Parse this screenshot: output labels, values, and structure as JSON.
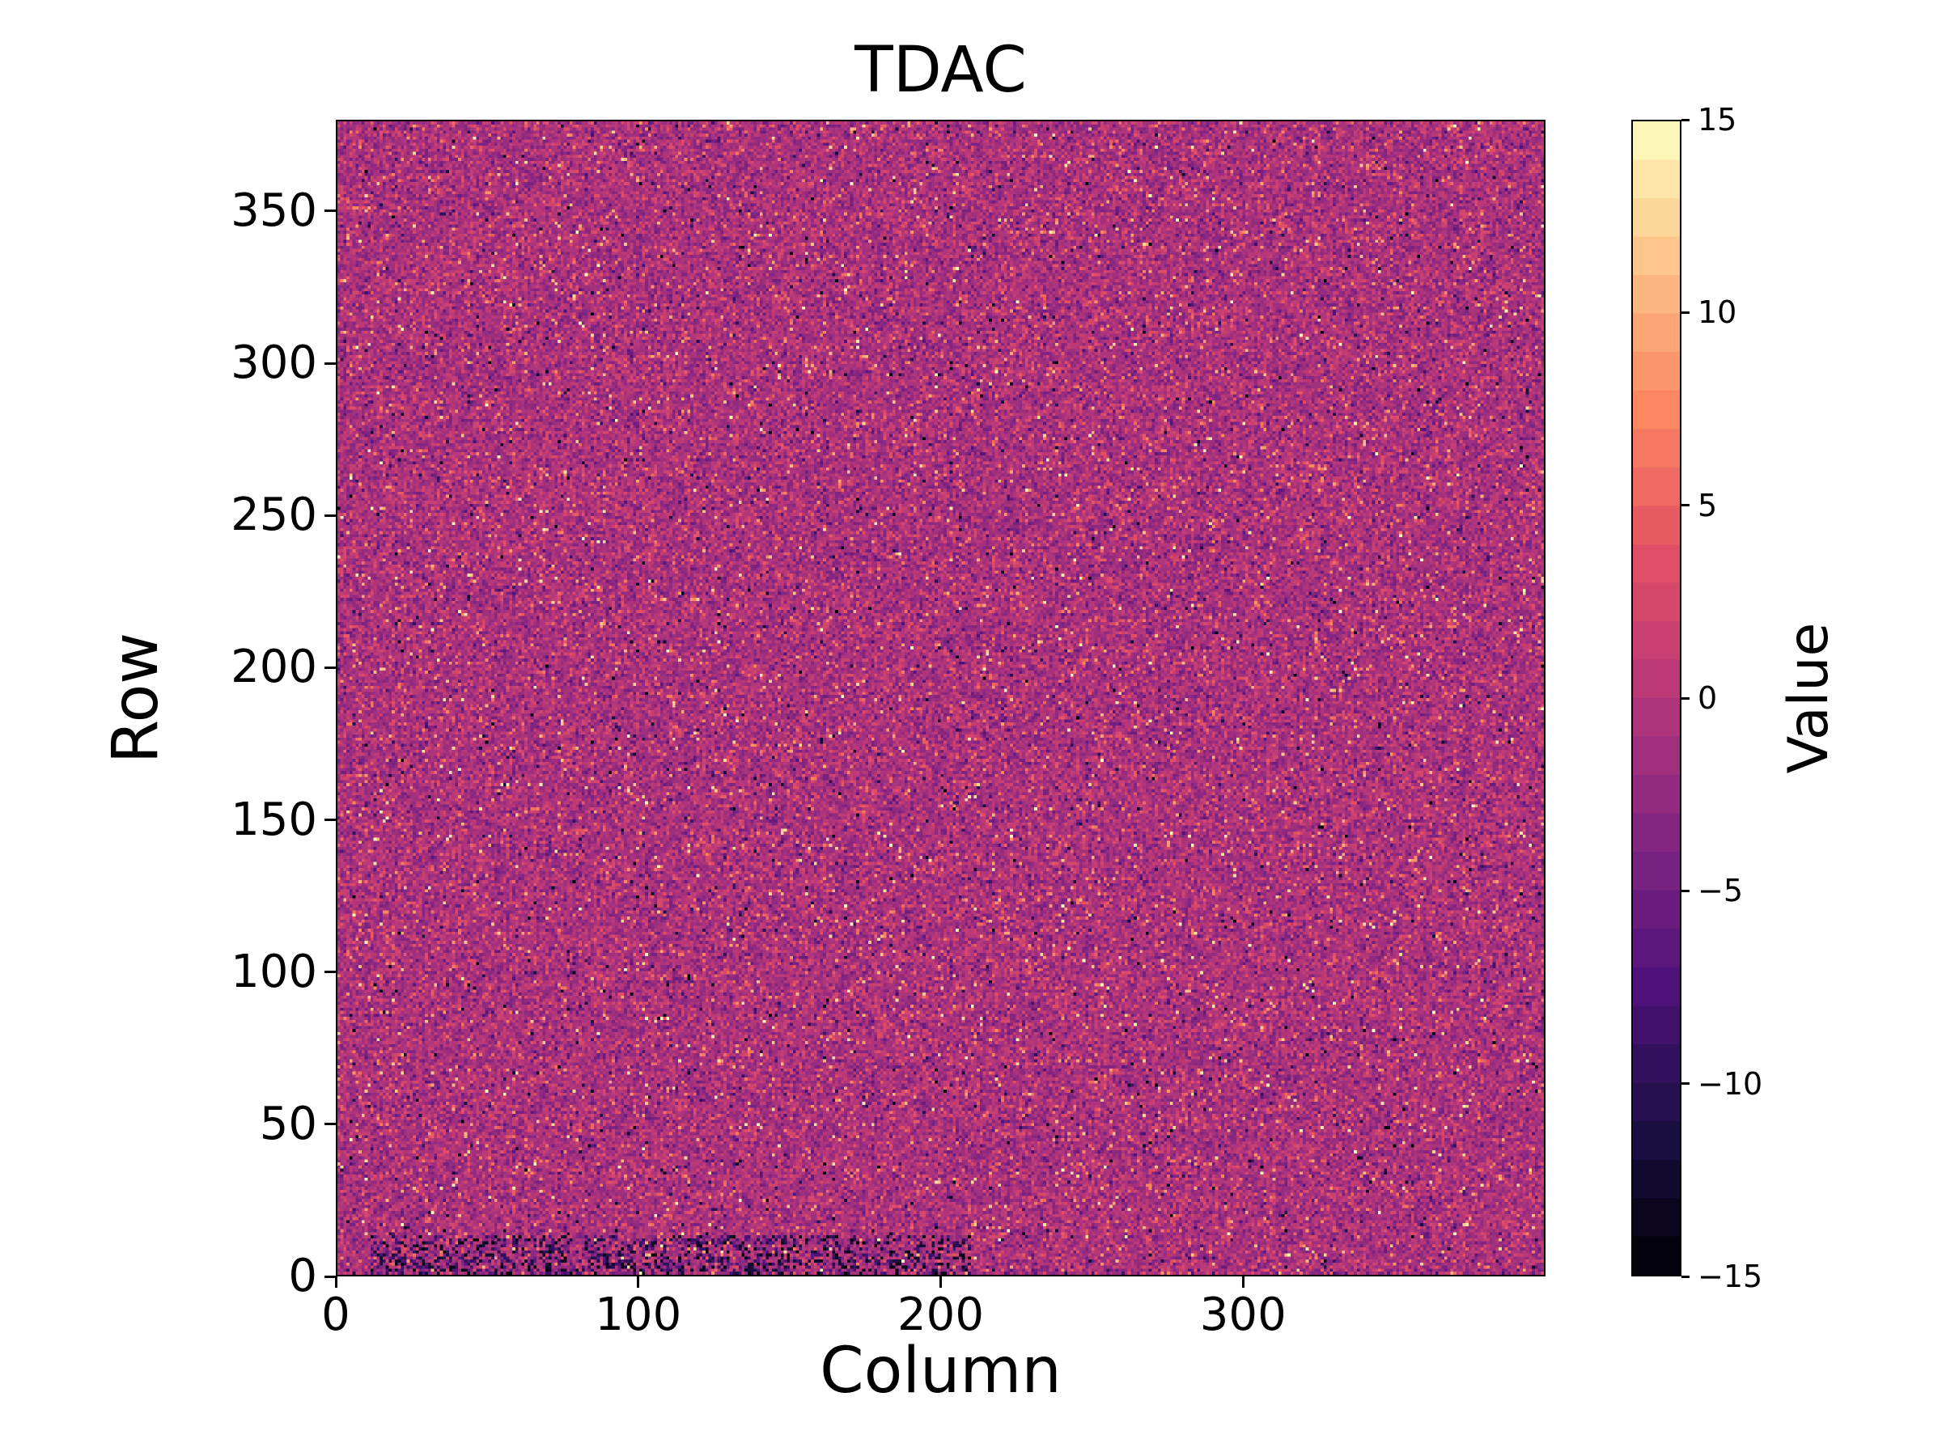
{
  "chart_data": {
    "type": "heatmap",
    "title": "TDAC",
    "xlabel": "Column",
    "ylabel": "Row",
    "colorbar_label": "Value",
    "xlim": [
      0,
      400
    ],
    "ylim": [
      0,
      380
    ],
    "x_tick_values": [
      0,
      100,
      200,
      300
    ],
    "x_tick_labels": [
      "0",
      "100",
      "200",
      "300"
    ],
    "y_tick_values": [
      0,
      50,
      100,
      150,
      200,
      250,
      300,
      350
    ],
    "y_tick_labels": [
      "0",
      "50",
      "100",
      "150",
      "200",
      "250",
      "300",
      "350"
    ],
    "colorbar_tick_values": [
      15,
      10,
      5,
      0,
      -5,
      -10,
      -15
    ],
    "colorbar_tick_labels": [
      "15",
      "10",
      "5",
      "0",
      "−5",
      "−10",
      "−15"
    ],
    "value_range": [
      -15,
      15
    ],
    "grid": {
      "cols": 400,
      "rows": 380
    },
    "colormap": "magma",
    "levels": 30,
    "legend_position": "right-colorbar",
    "grid_lines": false,
    "data_summary": {
      "description": "Per-pixel TDAC tuning map: random noise centered near -1 with standard deviation ~2.5, sparse bright outliers up to +15 and dark outliers down to -15, and a cluster of very low (black) values along the bottom rows toward the left side.",
      "approx_mean": -1,
      "approx_std": 2.5,
      "noise_seed": 42
    }
  }
}
